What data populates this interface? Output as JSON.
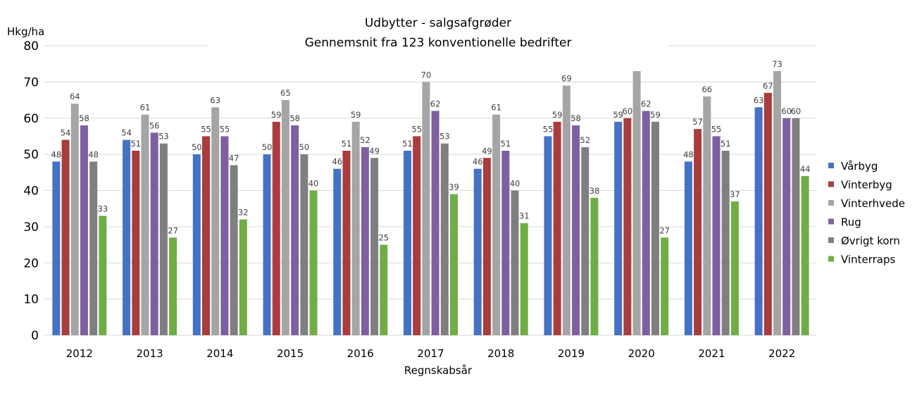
{
  "chart_data": {
    "type": "bar",
    "title": "Udbytter - salgsafgrøder",
    "subtitle": "Gennemsnit fra 123 konventionelle bedrifter",
    "xlabel": "Regnskabsår",
    "ylabel": "Hkg/ha",
    "ylim": [
      0,
      80
    ],
    "yticks": [
      0,
      10,
      20,
      30,
      40,
      50,
      60,
      70,
      80
    ],
    "grid": true,
    "legend_position": "right",
    "categories": [
      "2012",
      "2013",
      "2014",
      "2015",
      "2016",
      "2017",
      "2018",
      "2019",
      "2020",
      "2021",
      "2022"
    ],
    "series": [
      {
        "name": "Vårbyg",
        "color": "#4472C4",
        "values": [
          48,
          54,
          50,
          50,
          46,
          51,
          46,
          55,
          59,
          48,
          63
        ],
        "labels": [
          "48",
          "54",
          "50",
          "50",
          "46",
          "51",
          "46",
          "55",
          "59",
          "48",
          "63"
        ]
      },
      {
        "name": "Vinterbyg",
        "color": "#A93C3C",
        "values": [
          54,
          51,
          55,
          59,
          51,
          55,
          49,
          59,
          60,
          57,
          67
        ],
        "labels": [
          "54",
          "51",
          "55",
          "59",
          "51",
          "55",
          "49",
          "59",
          "60",
          "57",
          "67"
        ]
      },
      {
        "name": "Vinterhvede",
        "color": "#A5A5A5",
        "values": [
          64,
          61,
          63,
          65,
          59,
          70,
          61,
          69,
          73,
          66,
          73
        ],
        "labels": [
          "64",
          "61",
          "63",
          "65",
          "59",
          "70",
          "61",
          "69",
          "",
          "66",
          "73"
        ]
      },
      {
        "name": "Rug",
        "color": "#7F5FA0",
        "values": [
          58,
          56,
          55,
          58,
          52,
          62,
          51,
          58,
          62,
          55,
          60
        ],
        "labels": [
          "58",
          "56",
          "55",
          "58",
          "52",
          "62",
          "51",
          "58",
          "62",
          "55",
          "60"
        ]
      },
      {
        "name": "Øvrigt korn",
        "color": "#7F7F7F",
        "values": [
          48,
          53,
          47,
          50,
          49,
          53,
          40,
          52,
          59,
          51,
          60
        ],
        "labels": [
          "48",
          "53",
          "47",
          "50",
          "49",
          "53",
          "40",
          "52",
          "59",
          "51",
          "60"
        ]
      },
      {
        "name": "Vinterraps",
        "color": "#70AD47",
        "values": [
          33,
          27,
          32,
          40,
          25,
          39,
          31,
          38,
          27,
          37,
          44
        ],
        "labels": [
          "33",
          "27",
          "32",
          "40",
          "25",
          "39",
          "31",
          "38",
          "27",
          "37",
          "44"
        ]
      }
    ]
  }
}
